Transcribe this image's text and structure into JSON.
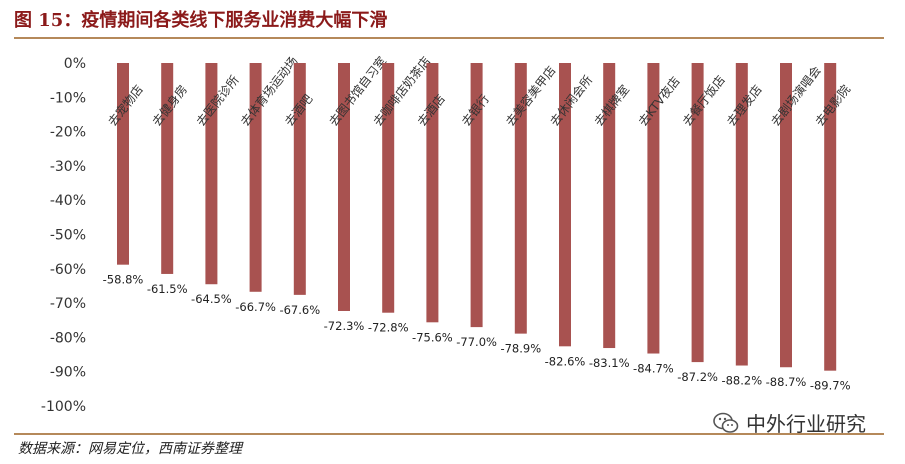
{
  "title": "图 15：疫情期间各类线下服务业消费大幅下滑",
  "source": "数据来源：网易定位，西南证券整理",
  "watermark": "中外行业研究",
  "colors": {
    "bar": "#a85250",
    "title": "#8b1a1a",
    "rule": "#b5895a"
  },
  "chart_data": {
    "type": "bar",
    "categories": [
      "去宠物店",
      "去健身房",
      "去医院诊所",
      "去体育场运动场",
      "去酒吧",
      "去图书馆自习室",
      "去咖啡店奶茶店",
      "去酒店",
      "去银行",
      "去美容美甲店",
      "去休闲会所",
      "去棋牌室",
      "去KTV夜店",
      "去餐厅饭店",
      "去理发店",
      "去剧场演唱会",
      "去电影院"
    ],
    "values": [
      -58.8,
      -61.5,
      -64.5,
      -66.7,
      -67.6,
      -72.3,
      -72.8,
      -75.6,
      -77.0,
      -78.9,
      -82.6,
      -83.1,
      -84.7,
      -87.2,
      -88.2,
      -88.7,
      -89.7
    ],
    "labels": [
      "-58.8%",
      "-61.5%",
      "-64.5%",
      "-66.7%",
      "-67.6%",
      "-72.3%",
      "-72.8%",
      "-75.6%",
      "-77.0%",
      "-78.9%",
      "-82.6%",
      "-83.1%",
      "-84.7%",
      "-87.2%",
      "-88.2%",
      "-88.7%",
      "-89.7%"
    ],
    "yticks": [
      "0%",
      "-10%",
      "-20%",
      "-30%",
      "-40%",
      "-50%",
      "-60%",
      "-70%",
      "-80%",
      "-90%",
      "-100%"
    ],
    "ylim": [
      -100,
      0
    ],
    "grid": false,
    "legend": "none"
  }
}
